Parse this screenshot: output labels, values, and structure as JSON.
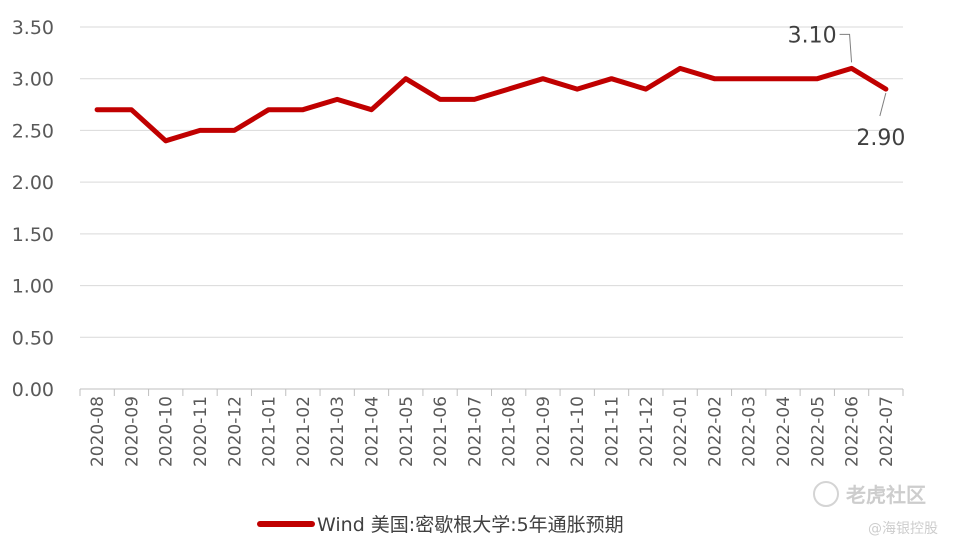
{
  "chart_data": {
    "type": "line",
    "categories": [
      "2020-08",
      "2020-09",
      "2020-10",
      "2020-11",
      "2020-12",
      "2021-01",
      "2021-02",
      "2021-03",
      "2021-04",
      "2021-05",
      "2021-06",
      "2021-07",
      "2021-08",
      "2021-09",
      "2021-10",
      "2021-11",
      "2021-12",
      "2022-01",
      "2022-02",
      "2022-03",
      "2022-04",
      "2022-05",
      "2022-06",
      "2022-07"
    ],
    "series": [
      {
        "name": "Wind 美国:密歇根大学:5年通胀预期",
        "values": [
          2.7,
          2.7,
          2.4,
          2.5,
          2.5,
          2.7,
          2.7,
          2.8,
          2.7,
          3.0,
          2.8,
          2.8,
          2.9,
          3.0,
          2.9,
          3.0,
          2.9,
          3.1,
          3.0,
          3.0,
          3.0,
          3.0,
          3.1,
          2.9
        ],
        "color": "#c00000"
      }
    ],
    "ylim": [
      0,
      3.5
    ],
    "yticks": [
      "0.00",
      "0.50",
      "1.00",
      "1.50",
      "2.00",
      "2.50",
      "3.00",
      "3.50"
    ],
    "grid": true,
    "legend_position": "bottom",
    "annotations": [
      {
        "label": "3.10",
        "category": "2022-06",
        "value": 3.1
      },
      {
        "label": "2.90",
        "category": "2022-07",
        "value": 2.9
      }
    ],
    "title": "",
    "xlabel": "",
    "ylabel": ""
  },
  "watermark": {
    "brand": "老虎社区",
    "handle": "@海银控股"
  }
}
